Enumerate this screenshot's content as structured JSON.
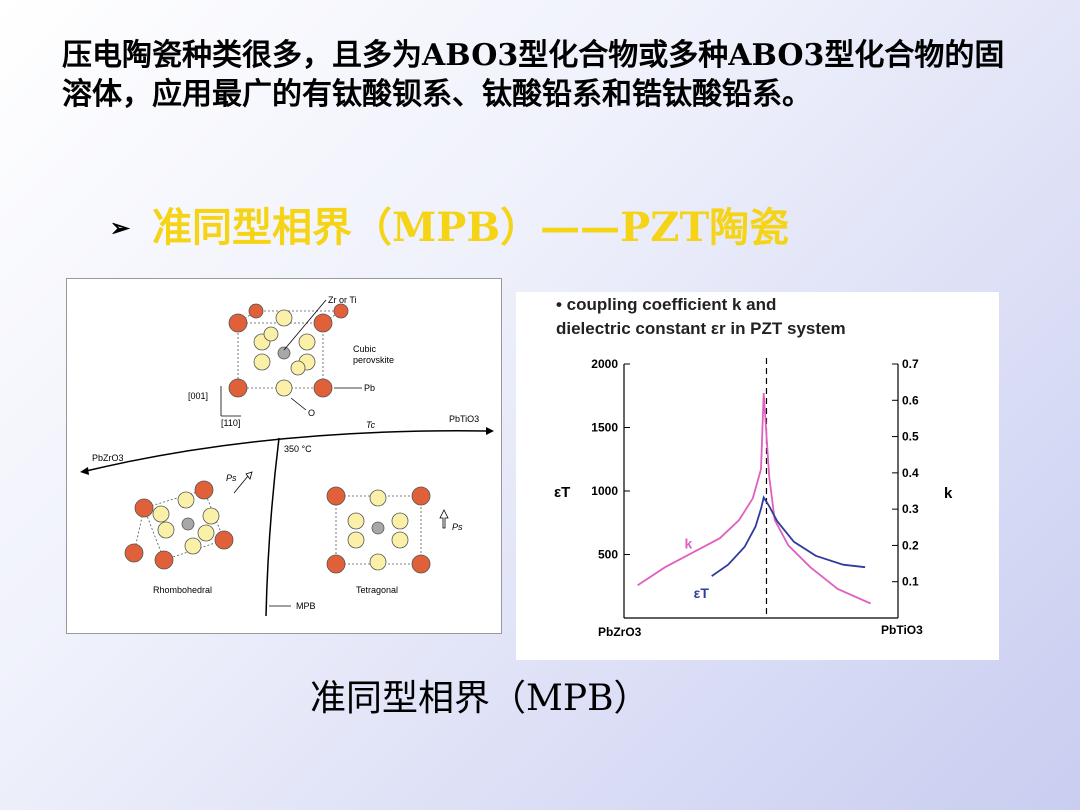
{
  "slide": {
    "paragraph": "压电陶瓷种类很多，且多为ABO3型化合物或多种ABO3型化合物的固溶体，应用最广的有钛酸钡系、钛酸铅系和锆钛酸铅系。",
    "bullet_heading": "准同型相界（MPB）——PZT陶瓷",
    "caption": "准同型相界（MPB）"
  },
  "phase_diagram": {
    "labels": {
      "zr_ti": "Zr or Ti",
      "cubic1": "Cubic",
      "cubic2": "perovskite",
      "pb": "Pb",
      "o": "O",
      "dir001": "[001]",
      "dir110": "[110]",
      "tc": "Tc",
      "pbtio3": "PbTiO3",
      "pbzro3": "PbZrO3",
      "temp": "350 °C",
      "ps1": "Ps",
      "ps2": "Ps",
      "rhombo": "Rhombohedral",
      "tetra": "Tetragonal",
      "mpb": "MPB"
    },
    "colors": {
      "pb_atom": "#e0603a",
      "o_atom": "#fbf0a8",
      "b_atom": "#a8a8a8"
    }
  },
  "chart_data": {
    "type": "line",
    "title": "• coupling coefficient k and dielectric constant εr in PZT system",
    "title_line1": "• coupling coefficient k and",
    "title_line2": "dielectric constant εr in PZT system",
    "ylabel_left": "εT",
    "ylabel_right": "k",
    "ylim_left": [
      0,
      2000
    ],
    "ylim_right": [
      0,
      0.7
    ],
    "yticks_left": [
      500,
      1000,
      1500,
      2000
    ],
    "yticks_left_labels": [
      "500",
      "1000",
      "1500",
      "2000"
    ],
    "yticks_right": [
      0.1,
      0.2,
      0.3,
      0.4,
      0.5,
      0.6,
      0.7
    ],
    "yticks_right_labels": [
      "0.1",
      "0.2",
      "0.3",
      "0.4",
      "0.5",
      "0.6",
      "0.7"
    ],
    "x_label_left": "PbZrO3",
    "x_label_right": "PbTiO3",
    "xlim": [
      0,
      100
    ],
    "mpb_x": 52,
    "series": [
      {
        "name": "k",
        "axis": "right",
        "color": "#e060c0",
        "x": [
          5,
          15,
          25,
          35,
          42,
          47,
          50,
          51,
          53,
          55,
          60,
          68,
          78,
          90
        ],
        "y": [
          0.09,
          0.14,
          0.18,
          0.22,
          0.27,
          0.33,
          0.41,
          0.62,
          0.39,
          0.27,
          0.2,
          0.14,
          0.08,
          0.04
        ]
      },
      {
        "name": "εT",
        "axis": "left",
        "color": "#303c9c",
        "x": [
          32,
          38,
          44,
          48,
          50,
          51,
          53,
          56,
          62,
          70,
          80,
          88
        ],
        "y": [
          330,
          420,
          560,
          720,
          860,
          950,
          880,
          760,
          600,
          490,
          420,
          400
        ]
      }
    ]
  }
}
